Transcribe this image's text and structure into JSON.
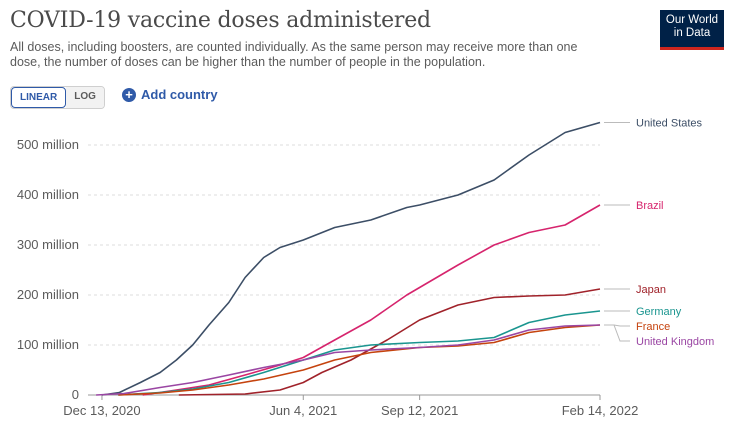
{
  "header": {
    "title": "COVID-19 vaccine doses administered",
    "subtitle": "All doses, including boosters, are counted individually. As the same person may receive more than one dose, the number of doses can be higher than the number of people in the population.",
    "logo_line1": "Our World",
    "logo_line2": "in Data",
    "logo_bg": "#002147",
    "logo_accent": "#ce261e"
  },
  "controls": {
    "linear_label": "LINEAR",
    "log_label": "LOG",
    "active_scale": "LINEAR",
    "add_country_label": "Add country",
    "accent": "#2f5aa8"
  },
  "chart_data": {
    "type": "line",
    "xlim": [
      "2020-12-01",
      "2022-02-14"
    ],
    "ylim": [
      0,
      550
    ],
    "y_ticks": [
      0,
      100,
      200,
      300,
      400,
      500
    ],
    "y_tick_labels": [
      "0",
      "100 million",
      "200 million",
      "300 million",
      "400 million",
      "500 million"
    ],
    "x_ticks": [
      "2020-12-13",
      "2021-06-04",
      "2021-09-12",
      "2022-02-14"
    ],
    "x_tick_labels": [
      "Dec 13, 2020",
      "Jun 4, 2021",
      "Sep 12, 2021",
      "Feb 14, 2022"
    ],
    "grid": true,
    "series": [
      {
        "name": "United States",
        "color": "#3c4e66",
        "points": [
          [
            "2020-12-13",
            0
          ],
          [
            "2020-12-28",
            5
          ],
          [
            "2021-01-15",
            25
          ],
          [
            "2021-02-01",
            45
          ],
          [
            "2021-02-15",
            70
          ],
          [
            "2021-03-01",
            100
          ],
          [
            "2021-03-15",
            140
          ],
          [
            "2021-04-01",
            185
          ],
          [
            "2021-04-15",
            235
          ],
          [
            "2021-05-01",
            275
          ],
          [
            "2021-05-15",
            295
          ],
          [
            "2021-06-04",
            310
          ],
          [
            "2021-07-01",
            335
          ],
          [
            "2021-08-01",
            350
          ],
          [
            "2021-09-01",
            375
          ],
          [
            "2021-09-12",
            380
          ],
          [
            "2021-10-15",
            400
          ],
          [
            "2021-11-15",
            430
          ],
          [
            "2021-12-15",
            480
          ],
          [
            "2022-01-15",
            525
          ],
          [
            "2022-02-14",
            545
          ]
        ]
      },
      {
        "name": "Brazil",
        "color": "#d6246d",
        "points": [
          [
            "2021-01-17",
            0
          ],
          [
            "2021-02-15",
            10
          ],
          [
            "2021-03-15",
            20
          ],
          [
            "2021-04-15",
            40
          ],
          [
            "2021-05-15",
            60
          ],
          [
            "2021-06-04",
            75
          ],
          [
            "2021-07-01",
            110
          ],
          [
            "2021-08-01",
            150
          ],
          [
            "2021-09-01",
            200
          ],
          [
            "2021-09-12",
            215
          ],
          [
            "2021-10-15",
            260
          ],
          [
            "2021-11-15",
            300
          ],
          [
            "2021-12-15",
            325
          ],
          [
            "2022-01-15",
            340
          ],
          [
            "2022-02-14",
            380
          ]
        ]
      },
      {
        "name": "Japan",
        "color": "#a0222a",
        "points": [
          [
            "2021-02-17",
            0
          ],
          [
            "2021-04-15",
            2
          ],
          [
            "2021-05-15",
            10
          ],
          [
            "2021-06-04",
            25
          ],
          [
            "2021-06-20",
            45
          ],
          [
            "2021-07-15",
            70
          ],
          [
            "2021-08-15",
            110
          ],
          [
            "2021-09-12",
            150
          ],
          [
            "2021-10-15",
            180
          ],
          [
            "2021-11-15",
            195
          ],
          [
            "2021-12-15",
            198
          ],
          [
            "2022-01-15",
            200
          ],
          [
            "2022-02-14",
            212
          ]
        ]
      },
      {
        "name": "Germany",
        "color": "#1a958f",
        "points": [
          [
            "2020-12-27",
            0
          ],
          [
            "2021-02-01",
            5
          ],
          [
            "2021-03-01",
            12
          ],
          [
            "2021-04-01",
            25
          ],
          [
            "2021-05-01",
            45
          ],
          [
            "2021-06-04",
            70
          ],
          [
            "2021-07-01",
            90
          ],
          [
            "2021-08-01",
            100
          ],
          [
            "2021-09-12",
            105
          ],
          [
            "2021-10-15",
            108
          ],
          [
            "2021-11-15",
            115
          ],
          [
            "2021-12-15",
            145
          ],
          [
            "2022-01-15",
            160
          ],
          [
            "2022-02-14",
            168
          ]
        ]
      },
      {
        "name": "France",
        "color": "#c5430e",
        "points": [
          [
            "2020-12-27",
            0
          ],
          [
            "2021-02-01",
            4
          ],
          [
            "2021-03-01",
            10
          ],
          [
            "2021-04-01",
            20
          ],
          [
            "2021-05-01",
            32
          ],
          [
            "2021-06-04",
            50
          ],
          [
            "2021-07-01",
            70
          ],
          [
            "2021-08-01",
            85
          ],
          [
            "2021-09-12",
            95
          ],
          [
            "2021-10-15",
            98
          ],
          [
            "2021-11-15",
            105
          ],
          [
            "2021-12-15",
            125
          ],
          [
            "2022-01-15",
            135
          ],
          [
            "2022-02-14",
            140
          ]
        ]
      },
      {
        "name": "United Kingdom",
        "color": "#9a46a3",
        "points": [
          [
            "2020-12-08",
            0
          ],
          [
            "2021-01-01",
            3
          ],
          [
            "2021-02-01",
            15
          ],
          [
            "2021-03-01",
            25
          ],
          [
            "2021-04-01",
            40
          ],
          [
            "2021-05-01",
            55
          ],
          [
            "2021-06-04",
            70
          ],
          [
            "2021-07-01",
            85
          ],
          [
            "2021-08-01",
            90
          ],
          [
            "2021-09-12",
            95
          ],
          [
            "2021-10-15",
            100
          ],
          [
            "2021-11-15",
            110
          ],
          [
            "2021-12-15",
            130
          ],
          [
            "2022-01-15",
            138
          ],
          [
            "2022-02-14",
            140
          ]
        ]
      }
    ]
  }
}
